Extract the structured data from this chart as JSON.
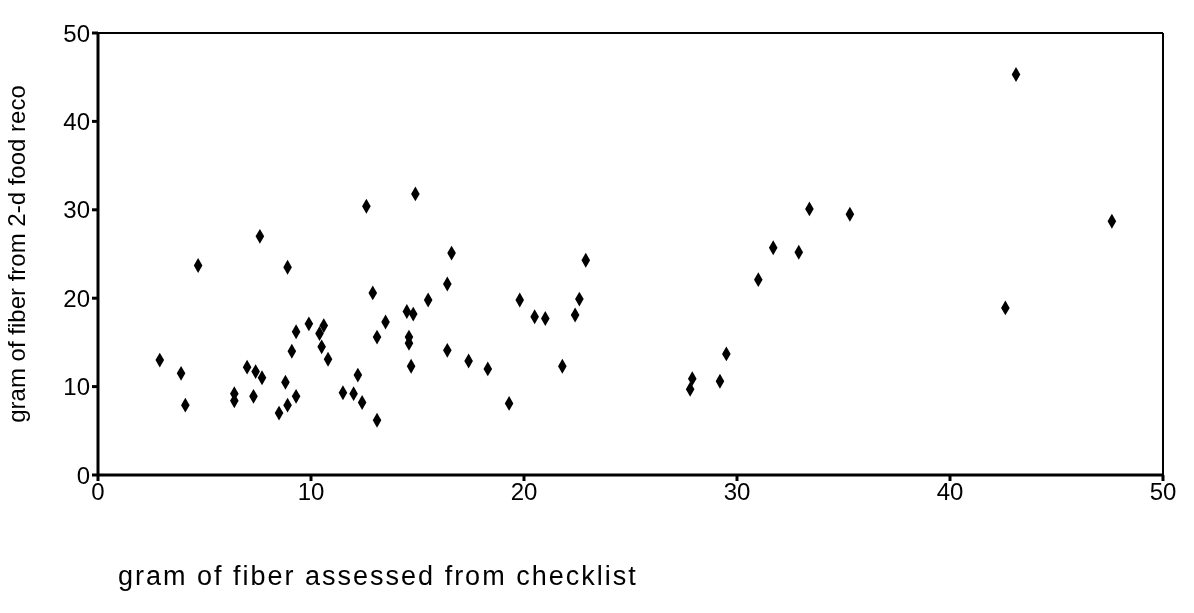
{
  "chart_data": {
    "type": "scatter",
    "xlabel": "gram of fiber assessed from checklist",
    "ylabel": "gram of fiber from 2-d food reco",
    "xlim": [
      0,
      50
    ],
    "ylim": [
      0,
      50
    ],
    "xticks": [
      0,
      10,
      20,
      30,
      40,
      50
    ],
    "yticks": [
      0,
      10,
      20,
      30,
      40,
      50
    ],
    "legend": false,
    "marker": "diamond",
    "series": [
      {
        "color": "#000000",
        "x": [
          14.9,
          12.6,
          7.6,
          4.7,
          8.9,
          12.9,
          15.5,
          14.5,
          14.8,
          13.5,
          13.1,
          14.6,
          14.6,
          14.7,
          9.9,
          10.6,
          10.4,
          9.3,
          10.5,
          9.1,
          10.8,
          2.9,
          3.9,
          4.1,
          7.0,
          7.4,
          7.7,
          6.4,
          6.4,
          7.3,
          8.8,
          9.3,
          8.9,
          8.5,
          12.2,
          11.5,
          12.0,
          12.4,
          13.1,
          16.6,
          16.4,
          16.4,
          17.4,
          18.3,
          19.3,
          19.8,
          20.5,
          21.0,
          21.8,
          22.4,
          22.6,
          22.9,
          27.9,
          27.8,
          29.2,
          29.5,
          43.1,
          33.4,
          35.3,
          47.6,
          31.7,
          32.9,
          31.0,
          42.6
        ],
        "values": [
          31.8,
          30.4,
          27.0,
          23.7,
          23.5,
          20.6,
          19.8,
          18.5,
          18.2,
          17.3,
          15.6,
          15.6,
          14.9,
          12.3,
          17.1,
          16.9,
          16.0,
          16.2,
          14.5,
          14.0,
          13.1,
          13.0,
          11.5,
          7.9,
          12.2,
          11.7,
          11.0,
          9.2,
          8.4,
          8.9,
          10.5,
          8.9,
          7.9,
          7.0,
          11.3,
          9.3,
          9.2,
          8.2,
          6.2,
          25.1,
          21.6,
          14.1,
          12.9,
          12.0,
          8.1,
          19.8,
          17.9,
          17.7,
          12.3,
          18.1,
          19.9,
          24.3,
          10.9,
          9.7,
          10.6,
          13.7,
          45.3,
          30.1,
          29.5,
          28.7,
          25.7,
          25.2,
          22.1,
          18.9
        ]
      }
    ]
  }
}
